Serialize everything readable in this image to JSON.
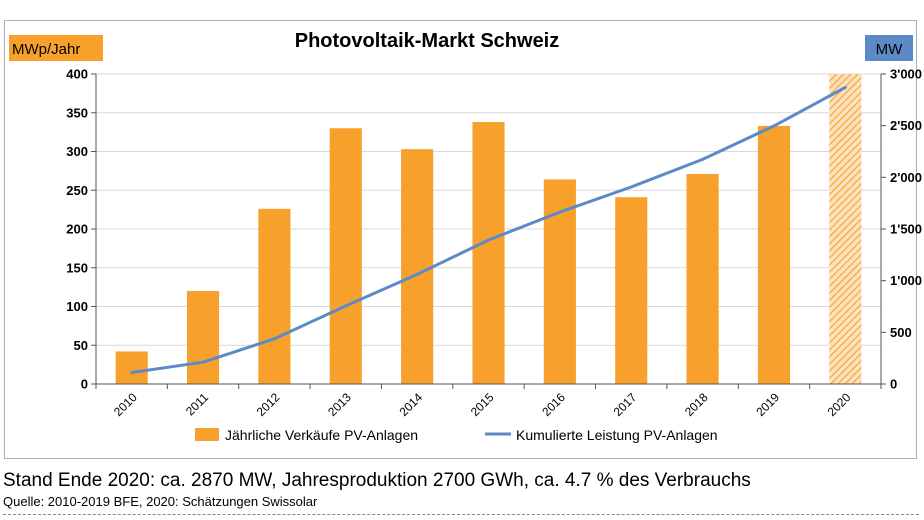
{
  "chart_data": {
    "type": "bar+line",
    "title": "Photovoltaik-Markt Schweiz",
    "y_left_label": "MWp/Jahr",
    "y_right_label": "MW",
    "y_left_range": [
      0,
      400
    ],
    "y_right_range": [
      0,
      3000
    ],
    "y_left_ticks": [
      "0",
      "50",
      "100",
      "150",
      "200",
      "250",
      "300",
      "350",
      "400"
    ],
    "y_right_ticks": [
      "0",
      "500",
      "1'000",
      "1'500",
      "2'000",
      "2'500",
      "3'000"
    ],
    "y_left_tick_values": [
      0,
      50,
      100,
      150,
      200,
      250,
      300,
      350,
      400
    ],
    "y_right_tick_values": [
      0,
      500,
      1000,
      1500,
      2000,
      2500,
      3000
    ],
    "categories": [
      "2010",
      "2011",
      "2012",
      "2013",
      "2014",
      "2015",
      "2016",
      "2017",
      "2018",
      "2019",
      "2020"
    ],
    "series": [
      {
        "name": "Jährliche Verkäufe PV-Anlagen",
        "type": "bar",
        "axis": "left",
        "color": "#f7a12c",
        "values": [
          42,
          120,
          226,
          330,
          303,
          338,
          264,
          241,
          271,
          333,
          400
        ],
        "estimated_last": true
      },
      {
        "name": "Kumulierte Leistung PV-Anlagen",
        "type": "line",
        "axis": "right",
        "color": "#5b8ac6",
        "values": [
          111,
          211,
          437,
          756,
          1061,
          1394,
          1664,
          1906,
          2174,
          2498,
          2870
        ]
      }
    ],
    "grid": true,
    "legend_position": "bottom"
  },
  "footer": {
    "line1": "Stand Ende 2020: ca. 2870 MW, Jahresproduktion 2700 GWh, ca. 4.7 % des Verbrauchs",
    "line2": "Quelle: 2010-2019 BFE, 2020: Schätzungen Swissolar"
  },
  "colors": {
    "bar": "#f7a12c",
    "line": "#5b8ac6",
    "left_label_bg": "#f7a12c",
    "right_label_bg": "#5b8ac6",
    "grid": "#d9d9d9"
  }
}
